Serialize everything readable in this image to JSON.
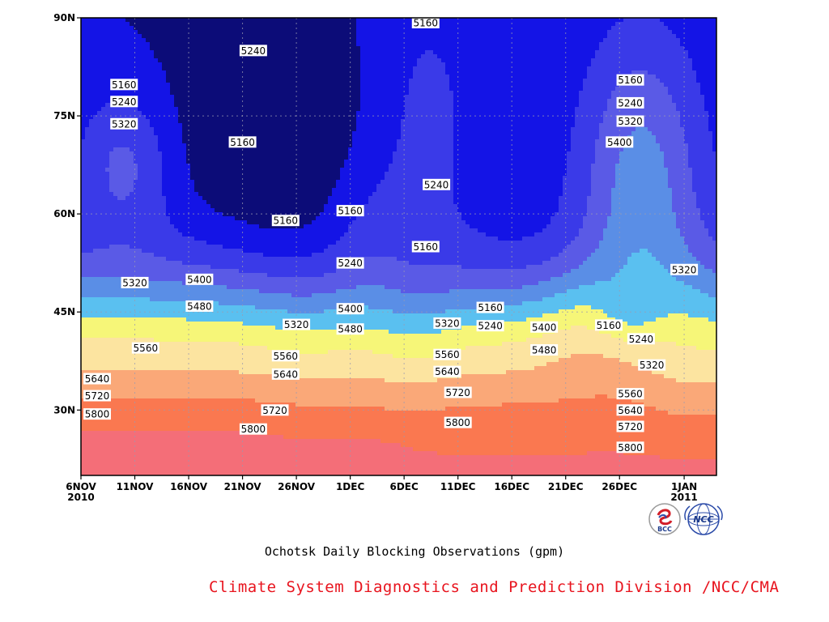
{
  "chart_data": {
    "type": "contour",
    "title": "Ochotsk Daily Blocking Observations (gpm)",
    "credit": "Climate System Diagnostics and Prediction Division /NCC/CMA",
    "x_ticks": [
      {
        "date": "2010-11-06",
        "label": "6NOV",
        "sublabel": "2010"
      },
      {
        "date": "2010-11-11",
        "label": "11NOV",
        "sublabel": ""
      },
      {
        "date": "2010-11-16",
        "label": "16NOV",
        "sublabel": ""
      },
      {
        "date": "2010-11-21",
        "label": "21NOV",
        "sublabel": ""
      },
      {
        "date": "2010-11-26",
        "label": "26NOV",
        "sublabel": ""
      },
      {
        "date": "2010-12-01",
        "label": "1DEC",
        "sublabel": ""
      },
      {
        "date": "2010-12-06",
        "label": "6DEC",
        "sublabel": ""
      },
      {
        "date": "2010-12-11",
        "label": "11DEC",
        "sublabel": ""
      },
      {
        "date": "2010-12-16",
        "label": "16DEC",
        "sublabel": ""
      },
      {
        "date": "2010-12-21",
        "label": "21DEC",
        "sublabel": ""
      },
      {
        "date": "2010-12-26",
        "label": "26DEC",
        "sublabel": ""
      },
      {
        "date": "2011-01-01",
        "label": "1JAN",
        "sublabel": "2011"
      }
    ],
    "xlim": [
      "2010-11-06",
      "2011-01-04"
    ],
    "y_ticks": [
      {
        "value": 30,
        "label": "30N"
      },
      {
        "value": 45,
        "label": "45N"
      },
      {
        "value": 60,
        "label": "60N"
      },
      {
        "value": 75,
        "label": "75N"
      },
      {
        "value": 90,
        "label": "90N"
      }
    ],
    "ylim": [
      20,
      90
    ],
    "grid": true,
    "contour_levels": [
      5160,
      5240,
      5320,
      5400,
      5480,
      5560,
      5640,
      5720,
      5800,
      5880
    ],
    "fill_colors": [
      "#0c0c78",
      "#1414e6",
      "#3a3ae8",
      "#5a5ae6",
      "#5a8ee6",
      "#5ac0f0",
      "#f6f678",
      "#fce4a0",
      "#faa878",
      "#fa7850",
      "#f46e78",
      "#f03246"
    ],
    "contour_labels": [
      {
        "date": "2010-11-10",
        "lat": 79.8,
        "value": "5160"
      },
      {
        "date": "2010-11-10",
        "lat": 77.2,
        "value": "5240"
      },
      {
        "date": "2010-11-10",
        "lat": 73.8,
        "value": "5320"
      },
      {
        "date": "2010-11-22",
        "lat": 85.0,
        "value": "5240"
      },
      {
        "date": "2010-11-21",
        "lat": 71.0,
        "value": "5160"
      },
      {
        "date": "2010-11-25",
        "lat": 59.0,
        "value": "5160"
      },
      {
        "date": "2010-12-01",
        "lat": 60.5,
        "value": "5160"
      },
      {
        "date": "2010-12-01",
        "lat": 52.5,
        "value": "5240"
      },
      {
        "date": "2010-12-01",
        "lat": 45.5,
        "value": "5400"
      },
      {
        "date": "2010-12-01",
        "lat": 42.4,
        "value": "5480"
      },
      {
        "date": "2010-12-08",
        "lat": 90.0,
        "value": "5160"
      },
      {
        "date": "2010-12-09",
        "lat": 64.5,
        "value": "5240"
      },
      {
        "date": "2010-12-08",
        "lat": 55.0,
        "value": "5160"
      },
      {
        "date": "2010-11-11",
        "lat": 49.5,
        "value": "5320"
      },
      {
        "date": "2010-11-17",
        "lat": 50.0,
        "value": "5400"
      },
      {
        "date": "2010-11-17",
        "lat": 45.9,
        "value": "5480"
      },
      {
        "date": "2010-11-12",
        "lat": 39.5,
        "value": "5560"
      },
      {
        "date": "2010-11-07",
        "lat": 34.8,
        "value": "5640"
      },
      {
        "date": "2010-11-07",
        "lat": 32.2,
        "value": "5720"
      },
      {
        "date": "2010-11-07",
        "lat": 29.4,
        "value": "5800"
      },
      {
        "date": "2010-11-26",
        "lat": 43.1,
        "value": "5320"
      },
      {
        "date": "2010-11-25",
        "lat": 38.3,
        "value": "5560"
      },
      {
        "date": "2010-11-25",
        "lat": 35.5,
        "value": "5640"
      },
      {
        "date": "2010-11-24",
        "lat": 30.0,
        "value": "5720"
      },
      {
        "date": "2010-11-22",
        "lat": 27.1,
        "value": "5800"
      },
      {
        "date": "2010-12-10",
        "lat": 43.3,
        "value": "5320"
      },
      {
        "date": "2010-12-10",
        "lat": 38.5,
        "value": "5560"
      },
      {
        "date": "2010-12-10",
        "lat": 35.9,
        "value": "5640"
      },
      {
        "date": "2010-12-11",
        "lat": 32.7,
        "value": "5720"
      },
      {
        "date": "2010-12-11",
        "lat": 28.1,
        "value": "5800"
      },
      {
        "date": "2010-12-14",
        "lat": 45.7,
        "value": "5160"
      },
      {
        "date": "2010-12-14",
        "lat": 42.9,
        "value": "5240"
      },
      {
        "date": "2010-12-19",
        "lat": 42.7,
        "value": "5400"
      },
      {
        "date": "2010-12-19",
        "lat": 39.2,
        "value": "5480"
      },
      {
        "date": "2010-12-25",
        "lat": 43.0,
        "value": "5160"
      },
      {
        "date": "2010-12-27",
        "lat": 80.5,
        "value": "5160"
      },
      {
        "date": "2010-12-27",
        "lat": 77.0,
        "value": "5240"
      },
      {
        "date": "2010-12-27",
        "lat": 74.2,
        "value": "5320"
      },
      {
        "date": "2010-12-26",
        "lat": 71.0,
        "value": "5400"
      },
      {
        "date": "2011-01-01",
        "lat": 51.5,
        "value": "5320"
      },
      {
        "date": "2010-12-28",
        "lat": 40.9,
        "value": "5240"
      },
      {
        "date": "2010-12-29",
        "lat": 36.9,
        "value": "5320"
      },
      {
        "date": "2010-12-27",
        "lat": 32.5,
        "value": "5560"
      },
      {
        "date": "2010-12-27",
        "lat": 30.0,
        "value": "5640"
      },
      {
        "date": "2010-12-27",
        "lat": 27.5,
        "value": "5720"
      },
      {
        "date": "2010-12-27",
        "lat": 24.3,
        "value": "5800"
      }
    ]
  },
  "logos": {
    "bcc_text": "BCC",
    "ncc_text": "NCC"
  }
}
